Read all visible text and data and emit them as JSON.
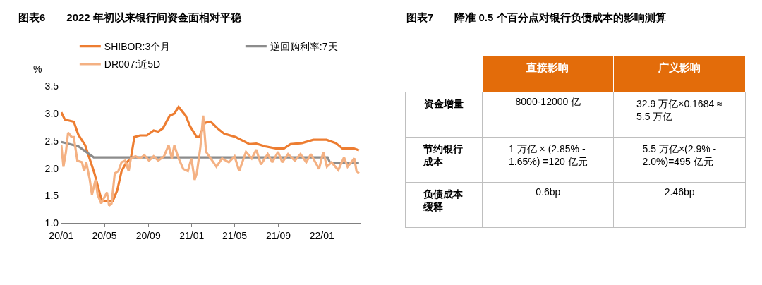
{
  "chart_data": [
    {
      "type": "line",
      "title": "图表6　　2022 年初以来银行间资金面相对平稳",
      "ylabel": "%",
      "xlim": [
        "2020-01-01",
        "2022-04-20"
      ],
      "xticks": [
        {
          "value": "2020-01-01",
          "label": "20/01"
        },
        {
          "value": "2020-05-01",
          "label": "20/05"
        },
        {
          "value": "2020-09-01",
          "label": "20/09"
        },
        {
          "value": "2021-01-01",
          "label": "21/01"
        },
        {
          "value": "2021-05-01",
          "label": "21/05"
        },
        {
          "value": "2021-09-01",
          "label": "21/09"
        },
        {
          "value": "2022-01-01",
          "label": "22/01"
        }
      ],
      "ylim": [
        1.0,
        3.5
      ],
      "yticks": [
        {
          "value": 1.0,
          "label": "1.0"
        },
        {
          "value": 1.5,
          "label": "1.5"
        },
        {
          "value": 2.0,
          "label": "2.0"
        },
        {
          "value": 2.5,
          "label": "2.5"
        },
        {
          "value": 3.0,
          "label": "3.0"
        },
        {
          "value": 3.5,
          "label": "3.5"
        }
      ],
      "legend": "top",
      "marker": "none",
      "line_style": "solid",
      "series": [
        {
          "name": "SHIBOR:3个月",
          "color": "#ed7d31",
          "x": [
            "2020-01-01",
            "2020-01-11",
            "2020-02-05",
            "2020-02-18",
            "2020-03-08",
            "2020-04-03",
            "2020-04-22",
            "2020-05-02",
            "2020-05-24",
            "2020-06-06",
            "2020-06-18",
            "2020-07-01",
            "2020-07-14",
            "2020-07-24",
            "2020-08-09",
            "2020-08-28",
            "2020-09-16",
            "2020-09-29",
            "2020-10-12",
            "2020-10-31",
            "2020-11-13",
            "2020-11-25",
            "2020-12-15",
            "2020-12-27",
            "2021-01-15",
            "2021-01-22",
            "2021-02-07",
            "2021-02-23",
            "2021-03-14",
            "2021-04-02",
            "2021-05-04",
            "2021-06-12",
            "2021-07-01",
            "2021-07-26",
            "2021-08-27",
            "2021-09-16",
            "2021-10-05",
            "2021-11-06",
            "2021-12-08",
            "2022-01-14",
            "2022-02-09",
            "2022-02-28",
            "2022-04-01",
            "2022-04-15"
          ],
          "values": [
            3.02,
            2.89,
            2.85,
            2.61,
            2.42,
            1.91,
            1.44,
            1.4,
            1.4,
            1.6,
            1.95,
            2.1,
            2.18,
            2.57,
            2.6,
            2.6,
            2.69,
            2.67,
            2.73,
            2.96,
            3.0,
            3.12,
            2.96,
            2.77,
            2.57,
            2.57,
            2.83,
            2.85,
            2.73,
            2.63,
            2.57,
            2.44,
            2.45,
            2.4,
            2.36,
            2.36,
            2.44,
            2.46,
            2.52,
            2.52,
            2.46,
            2.36,
            2.36,
            2.33
          ]
        },
        {
          "name": "逆回购利率:7天",
          "color": "#8c8c8c",
          "x": [
            "2020-01-01",
            "2020-02-18",
            "2020-04-01",
            "2022-01-17",
            "2022-01-24",
            "2022-04-15"
          ],
          "values": [
            2.48,
            2.4,
            2.2,
            2.2,
            2.1,
            2.1
          ]
        },
        {
          "name": "DR007:近5D",
          "color": "#f4b183",
          "x": [
            "2020-01-01",
            "2020-01-07",
            "2020-01-14",
            "2020-01-20",
            "2020-01-30",
            "2020-02-05",
            "2020-02-15",
            "2020-02-28",
            "2020-03-05",
            "2020-03-11",
            "2020-03-21",
            "2020-03-27",
            "2020-04-06",
            "2020-04-12",
            "2020-04-22",
            "2020-04-28",
            "2020-05-08",
            "2020-05-14",
            "2020-05-21",
            "2020-05-30",
            "2020-06-09",
            "2020-06-18",
            "2020-06-28",
            "2020-07-08",
            "2020-07-14",
            "2020-07-27",
            "2020-08-09",
            "2020-08-21",
            "2020-09-03",
            "2020-09-16",
            "2020-09-29",
            "2020-10-15",
            "2020-10-28",
            "2020-11-06",
            "2020-11-13",
            "2020-11-25",
            "2020-12-08",
            "2020-12-21",
            "2020-12-31",
            "2021-01-09",
            "2021-01-15",
            "2021-01-25",
            "2021-02-02",
            "2021-02-10",
            "2021-02-23",
            "2021-03-11",
            "2021-03-27",
            "2021-04-15",
            "2021-05-01",
            "2021-05-14",
            "2021-06-02",
            "2021-06-18",
            "2021-07-01",
            "2021-07-14",
            "2021-08-02",
            "2021-08-15",
            "2021-08-31",
            "2021-09-12",
            "2021-09-28",
            "2021-10-17",
            "2021-11-02",
            "2021-11-18",
            "2021-12-01",
            "2021-12-24",
            "2022-01-05",
            "2022-01-15",
            "2022-01-28",
            "2022-02-16",
            "2022-03-04",
            "2022-03-14",
            "2022-04-02",
            "2022-04-08",
            "2022-04-15"
          ],
          "values": [
            2.42,
            2.03,
            2.3,
            2.65,
            2.57,
            2.57,
            2.14,
            2.11,
            1.95,
            2.11,
            1.79,
            1.52,
            1.79,
            1.52,
            1.36,
            1.44,
            1.56,
            1.32,
            1.36,
            1.91,
            1.95,
            2.11,
            2.14,
            1.95,
            2.18,
            2.22,
            2.18,
            2.24,
            2.14,
            2.22,
            2.14,
            2.22,
            2.42,
            2.18,
            2.42,
            2.18,
            1.99,
            1.95,
            2.18,
            1.79,
            1.91,
            2.38,
            2.96,
            2.3,
            2.18,
            2.03,
            2.18,
            2.11,
            2.22,
            1.95,
            2.3,
            2.18,
            2.34,
            2.07,
            2.26,
            2.11,
            2.3,
            2.11,
            2.26,
            2.14,
            2.26,
            2.11,
            2.26,
            1.99,
            2.3,
            2.03,
            2.11,
            1.97,
            2.2,
            2.03,
            2.18,
            1.95,
            1.91
          ]
        }
      ]
    },
    {
      "type": "other",
      "title": "图表7　　降准 0.5 个百分点对银行负债成本的影响测算",
      "categories": [
        "直接影响",
        "广义影响"
      ],
      "y_categories": [
        "资金增量",
        "节约银行成本",
        "负债成本缓释"
      ],
      "cell_labels": [
        [
          "8000-12000 亿",
          "32.9 万亿×0.1684 ≈\n5.5 万亿"
        ],
        [
          "1 万亿 × (2.85% -\n1.65%) =120 亿元",
          "5.5 万亿×(2.9% -\n2.0%)=495 亿元"
        ],
        [
          "0.6bp",
          "2.46bp"
        ]
      ],
      "color": "#e36c0a"
    }
  ]
}
